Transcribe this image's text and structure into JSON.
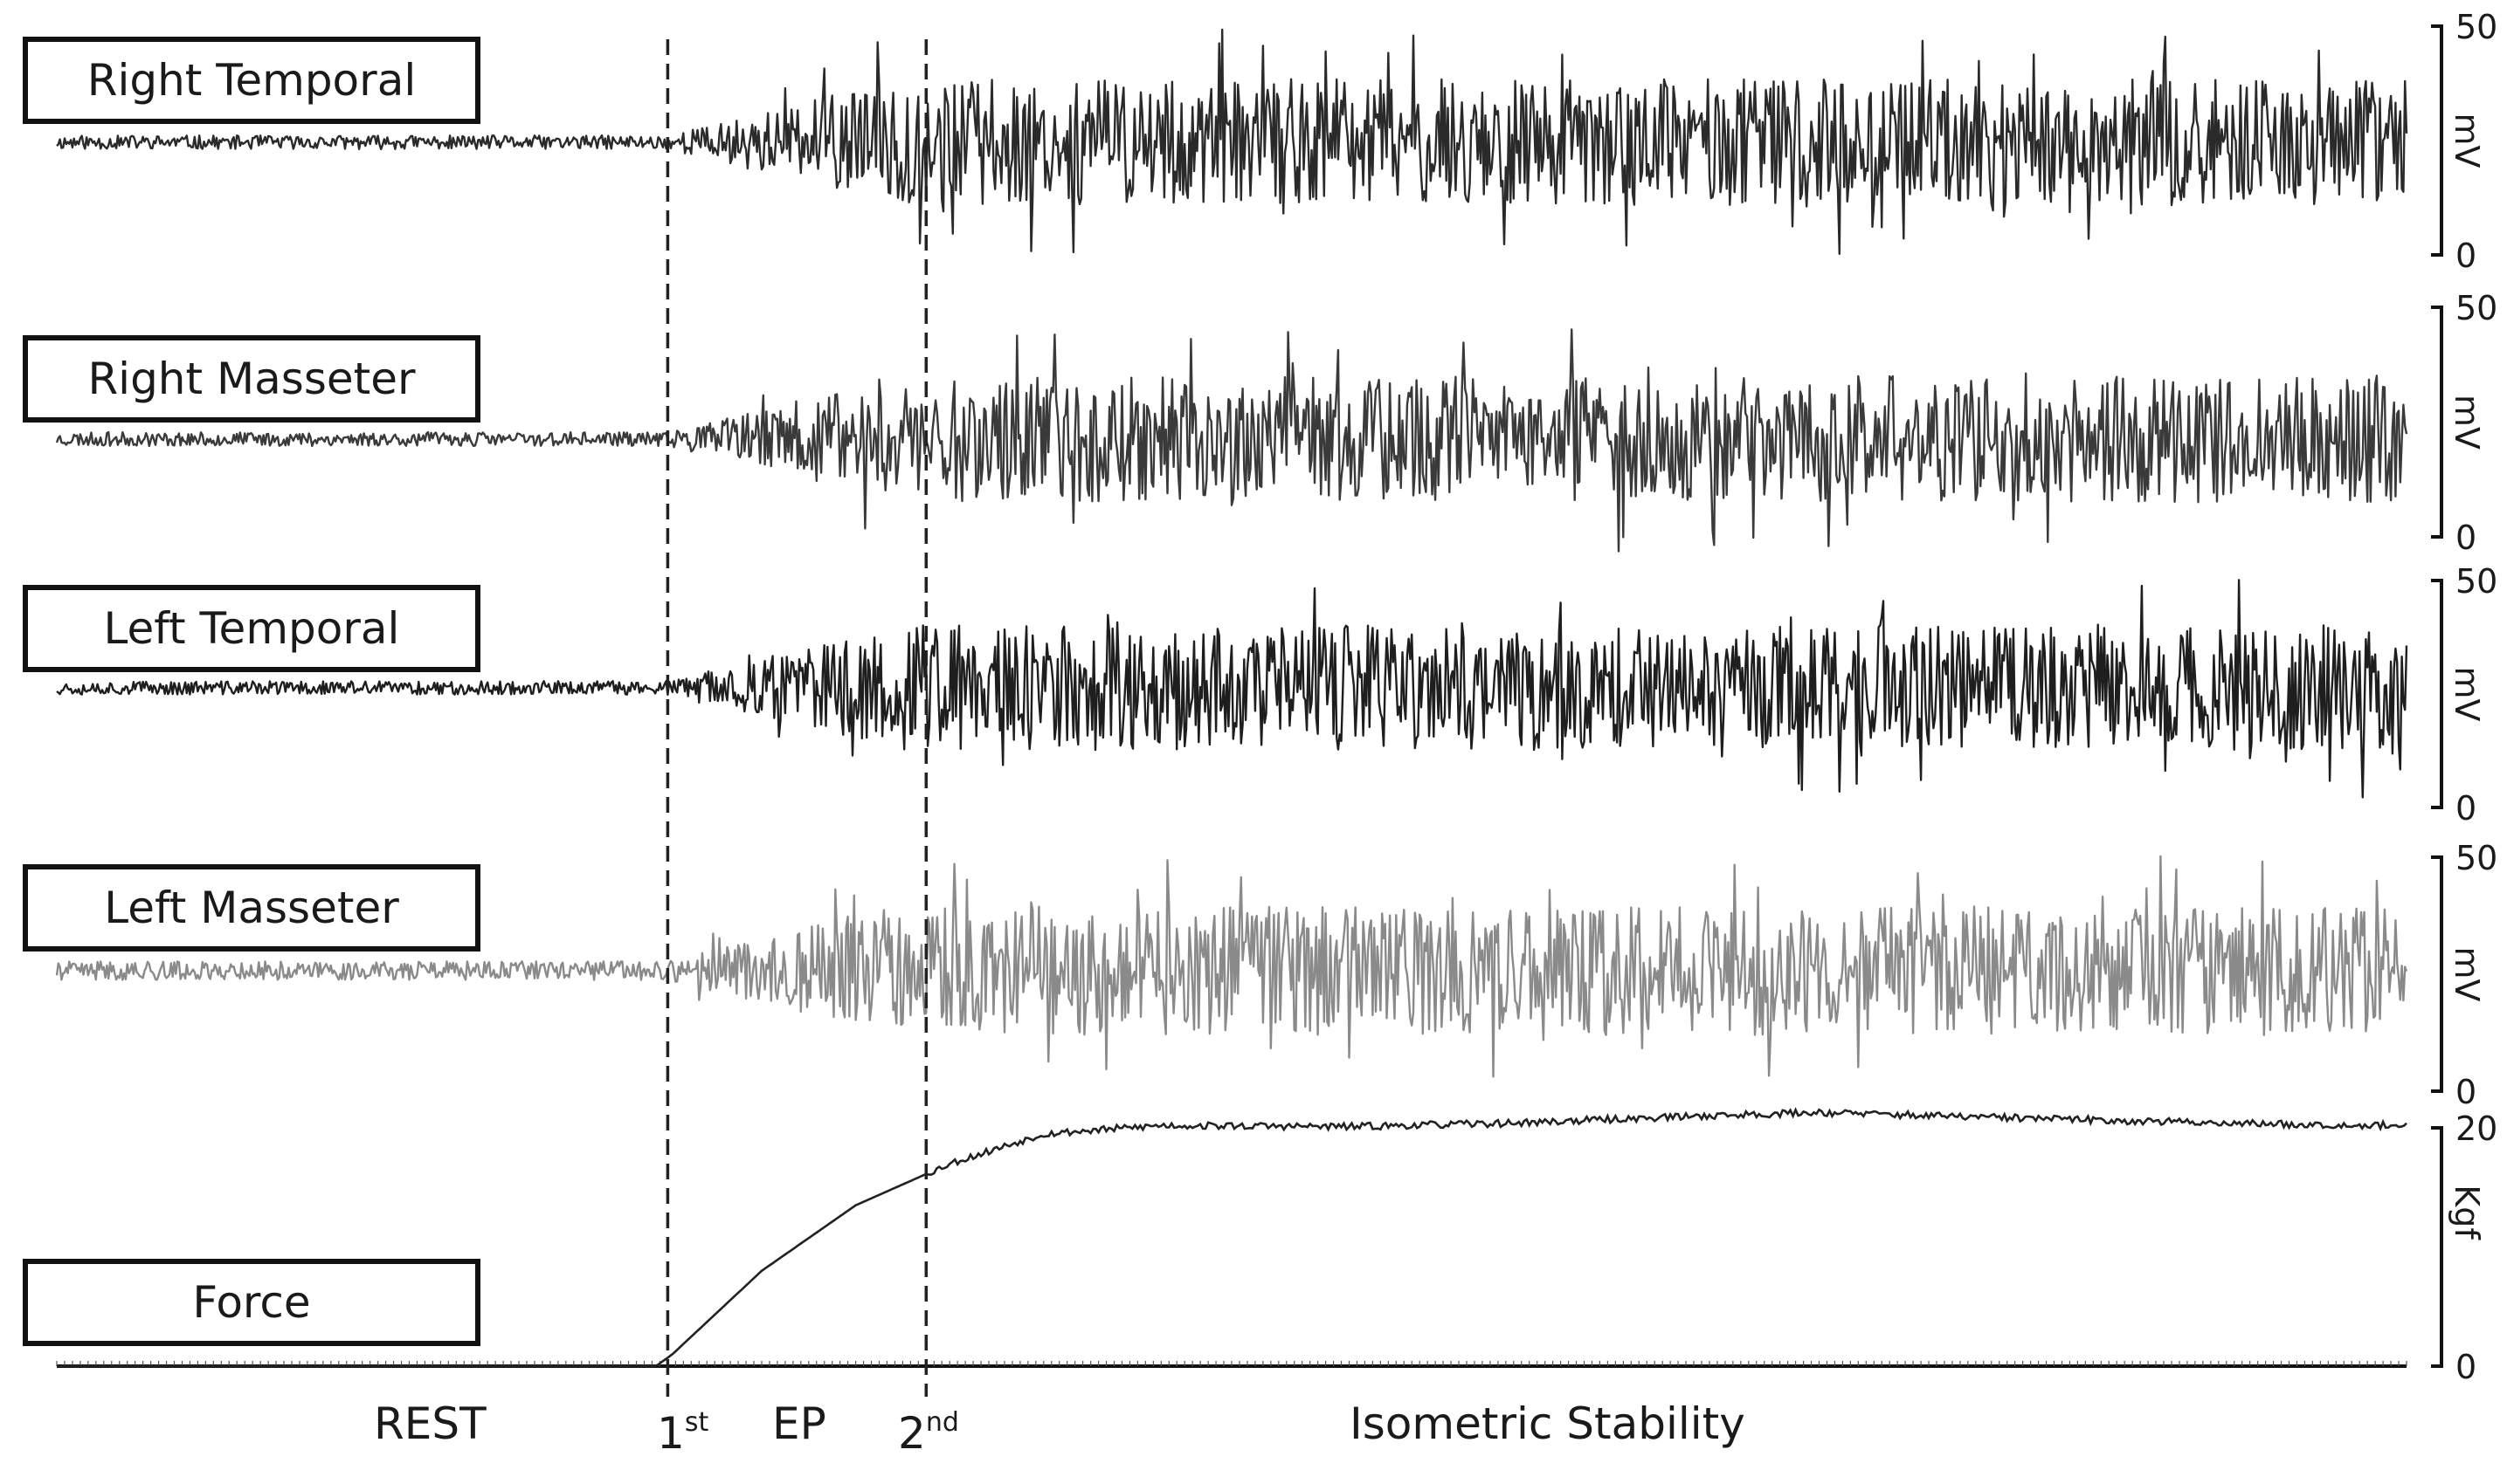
{
  "chart_data": {
    "type": "line",
    "title": "",
    "panels": [
      {
        "name": "Right Temporal",
        "unit": "mV",
        "ylim": [
          0,
          50
        ],
        "tick_labels": [
          "50",
          "0"
        ],
        "stroke": "#2a2a2a",
        "active_amplitude": 50,
        "rest_amplitude": 3,
        "seed": 11
      },
      {
        "name": "Right Masseter",
        "unit": "mV",
        "ylim": [
          0,
          50
        ],
        "tick_labels": [
          "50",
          "0"
        ],
        "stroke": "#3a3a3a",
        "active_amplitude": 50,
        "rest_amplitude": 3,
        "seed": 23
      },
      {
        "name": "Left Temporal",
        "unit": "mV",
        "ylim": [
          0,
          50
        ],
        "tick_labels": [
          "50",
          "0"
        ],
        "stroke": "#1e1e1e",
        "active_amplitude": 50,
        "rest_amplitude": 3,
        "seed": 37
      },
      {
        "name": "Left Masseter",
        "unit": "mV",
        "ylim": [
          0,
          50
        ],
        "tick_labels": [
          "50",
          "0"
        ],
        "stroke": "#8a8a8a",
        "active_amplitude": 50,
        "rest_amplitude": 4,
        "seed": 41
      },
      {
        "name": "Force",
        "unit": "Kgf",
        "ylim": [
          0,
          20
        ],
        "tick_labels": [
          "20",
          "0"
        ],
        "stroke": "#222222",
        "seed": 53,
        "series": [
          {
            "t": 0.0,
            "v": 0.0
          },
          {
            "t": 0.255,
            "v": 0.0
          },
          {
            "t": 0.262,
            "v": 1.0
          },
          {
            "t": 0.3,
            "v": 8.0
          },
          {
            "t": 0.34,
            "v": 13.5
          },
          {
            "t": 0.38,
            "v": 17.0
          },
          {
            "t": 0.42,
            "v": 19.5
          },
          {
            "t": 0.47,
            "v": 20.2
          },
          {
            "t": 0.55,
            "v": 20.1
          },
          {
            "t": 0.62,
            "v": 20.4
          },
          {
            "t": 0.7,
            "v": 21.0
          },
          {
            "t": 0.75,
            "v": 21.3
          },
          {
            "t": 0.8,
            "v": 21.0
          },
          {
            "t": 0.88,
            "v": 20.6
          },
          {
            "t": 0.95,
            "v": 20.3
          },
          {
            "t": 1.0,
            "v": 20.2
          }
        ]
      }
    ],
    "markers": [
      {
        "t": 0.26,
        "label": "1",
        "superscript": "st"
      },
      {
        "t": 0.37,
        "label": "2",
        "superscript": "nd"
      }
    ],
    "phases": [
      {
        "label": "REST",
        "t_center": 0.155
      },
      {
        "label": "EP",
        "t_center": 0.315
      },
      {
        "label": "Isometric Stability",
        "t_center": 0.63
      }
    ],
    "phase_boundaries_note": "REST before 1st, EP between 1st and 2nd, Isometric Stability after 2nd"
  },
  "colors": {
    "axis": "#111111",
    "dashed_marker": "#222222",
    "box_border": "#111111"
  }
}
